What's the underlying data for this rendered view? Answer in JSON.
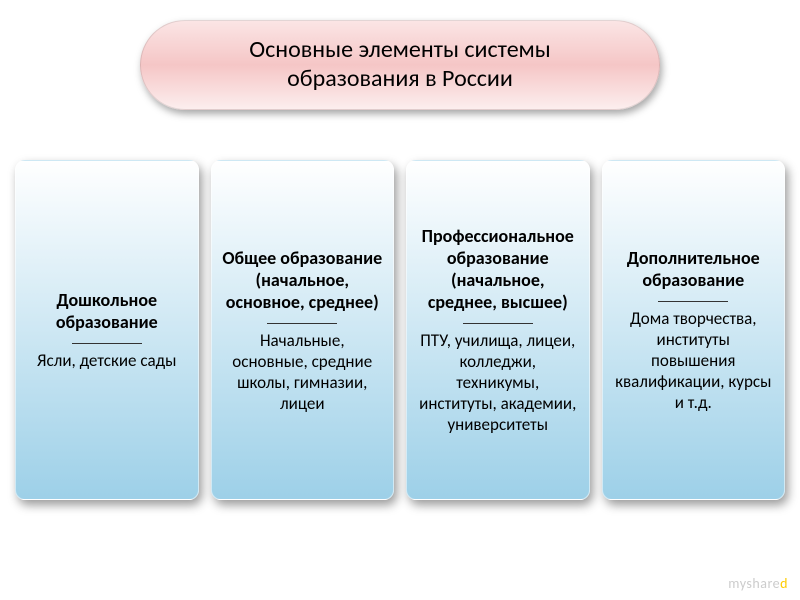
{
  "header": {
    "line1": "Основные элементы системы",
    "line2": "образования в России",
    "gradient_top": "#fbe5e5",
    "gradient_mid": "#f5c6c6",
    "gradient_bottom": "#fceeee",
    "fontsize": 24,
    "text_color": "#000000",
    "shadow": "2px 4px 8px rgba(0,0,0,0.35)"
  },
  "cards": {
    "gradient_top": "#ffffff",
    "gradient_bottom": "#9dd0e8",
    "shadow": "3px 5px 10px rgba(0,0,0,0.4)",
    "title_fontsize": 18,
    "body_fontsize": 17,
    "items": [
      {
        "title": "Дошкольное образование",
        "body": "Ясли, детские сады"
      },
      {
        "title": "Общее образование (начальное, основное, среднее)",
        "body": "Начальные, основные, средние школы, гимназии, лицеи"
      },
      {
        "title": "Профессиональное образование (начальное, среднее, высшее)",
        "body": "ПТУ, училища, лицеи, колледжи, техникумы, институты, академии, университеты"
      },
      {
        "title": "Дополнительное образование",
        "body": "Дома творчества, институты повышения квалификации, курсы и т.д."
      }
    ]
  },
  "watermark": {
    "prefix": "myshare",
    "accent": "d"
  }
}
